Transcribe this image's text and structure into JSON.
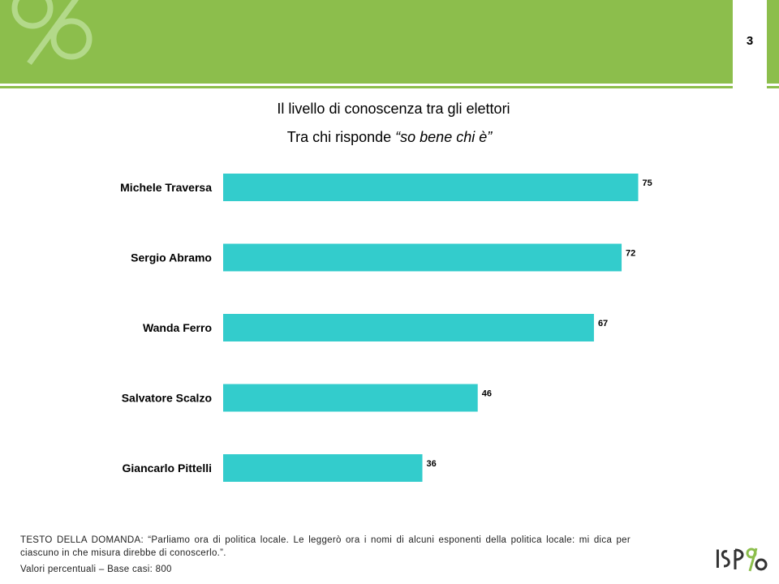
{
  "page": {
    "number": "3"
  },
  "header": {
    "watermark_icon": "percent-icon"
  },
  "title": "Il livello di conoscenza tra gli elettori",
  "subtitle": {
    "prefix": "Tra chi risponde ",
    "quote": "“so bene chi è”"
  },
  "chart_data": {
    "type": "bar",
    "orientation": "horizontal",
    "categories": [
      "Michele Traversa",
      "Sergio Abramo",
      "Wanda Ferro",
      "Salvatore Scalzo",
      "Giancarlo Pittelli"
    ],
    "values": [
      75,
      72,
      67,
      46,
      36
    ],
    "bar_color": "#33cccc",
    "title": "Il livello di conoscenza tra gli elettori",
    "xlim": [
      0,
      100
    ],
    "grid": false,
    "legend": "none"
  },
  "footnote": {
    "question": "TESTO DELLA DOMANDA: “Parliamo ora di politica locale. Le leggerò ora i nomi di alcuni esponenti della politica locale: mi dica per ciascuno in che misura direbbe di conoscerlo.”.",
    "base": "Valori percentuali – Base casi: 800"
  },
  "logo": {
    "text": "ISPO"
  },
  "colors": {
    "brand_green": "#8cbe4c",
    "bar": "#33cccc"
  }
}
